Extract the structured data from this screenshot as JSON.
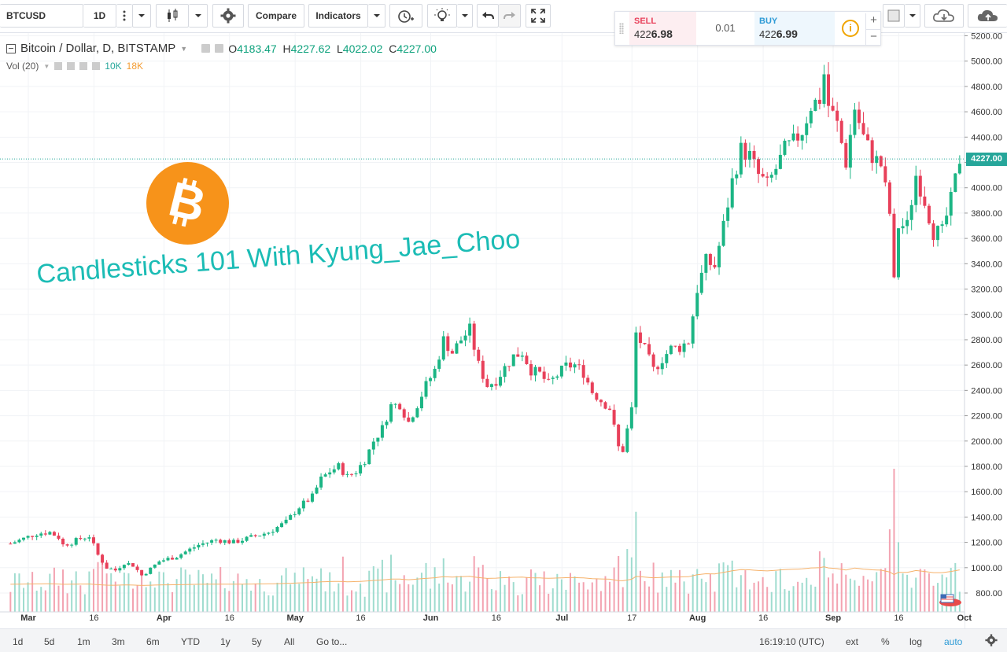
{
  "toolbar": {
    "symbol": "BTCUSD",
    "interval": "1D",
    "compare_label": "Compare",
    "indicators_label": "Indicators"
  },
  "trade_panel": {
    "sell_label": "SELL",
    "sell_price_prefix": "422",
    "sell_price_suffix": "6.98",
    "spread": "0.01",
    "buy_label": "BUY",
    "buy_price_prefix": "422",
    "buy_price_suffix": "6.99",
    "plus": "+",
    "minus": "−"
  },
  "legend": {
    "title": "Bitcoin / Dollar, D, BITSTAMP",
    "o_label": "O",
    "o_value": "4183.47",
    "h_label": "H",
    "h_value": "4227.62",
    "l_label": "L",
    "l_value": "4022.02",
    "c_label": "C",
    "c_value": "4227.00",
    "vol_label": "Vol (20)",
    "vol_value_1": "10K",
    "vol_value_2": "18K"
  },
  "overlay_text": "Candlesticks 101 With Kyung_Jae_Choo",
  "bottom_bar": {
    "ranges": [
      "1d",
      "5d",
      "1m",
      "3m",
      "6m",
      "YTD",
      "1y",
      "5y",
      "All"
    ],
    "goto_label": "Go to...",
    "time": "16:19:10 (UTC)",
    "ext": "ext",
    "percent": "%",
    "log": "log",
    "auto": "auto"
  },
  "colors": {
    "up": "#26a69a",
    "down": "#ef5350",
    "up_candle": "#1bb584",
    "down_candle": "#e8405a",
    "volume_ma": "#f6b26b",
    "bitcoin_orange": "#f7931a",
    "headline": "#1bbcb5",
    "current_price_tag": "#26a69a"
  },
  "chart_data": {
    "type": "candlestick",
    "title": "Bitcoin / Dollar, D, BITSTAMP",
    "current_price": "4227.00",
    "ylim": [
      700,
      5220
    ],
    "y_ticks": [
      "800.00",
      "1000.00",
      "1200.00",
      "1400.00",
      "1600.00",
      "1800.00",
      "2000.00",
      "2200.00",
      "2400.00",
      "2600.00",
      "2800.00",
      "3000.00",
      "3200.00",
      "3400.00",
      "3600.00",
      "3800.00",
      "4000.00",
      "4200.00",
      "4400.00",
      "4600.00",
      "4800.00",
      "5000.00",
      "5200.00"
    ],
    "x_ticks": [
      "Mar",
      "16",
      "Apr",
      "16",
      "May",
      "16",
      "Jun",
      "16",
      "Jul",
      "17",
      "Aug",
      "16",
      "Sep",
      "16",
      "Oct"
    ],
    "x_tick_days": [
      0,
      15,
      31,
      46,
      61,
      76,
      92,
      107,
      122,
      138,
      153,
      168,
      184,
      199,
      214
    ],
    "day_start": "2017-03-01",
    "close_series": [
      [
        -3,
        1190
      ],
      [
        0,
        1230
      ],
      [
        3,
        1270
      ],
      [
        6,
        1280
      ],
      [
        8,
        1240
      ],
      [
        9,
        1180
      ],
      [
        11,
        1200
      ],
      [
        13,
        1230
      ],
      [
        15,
        1250
      ],
      [
        17,
        1100
      ],
      [
        19,
        1000
      ],
      [
        21,
        980
      ],
      [
        23,
        1040
      ],
      [
        25,
        1020
      ],
      [
        27,
        940
      ],
      [
        29,
        990
      ],
      [
        31,
        1050
      ],
      [
        35,
        1090
      ],
      [
        40,
        1180
      ],
      [
        44,
        1220
      ],
      [
        48,
        1200
      ],
      [
        52,
        1240
      ],
      [
        56,
        1280
      ],
      [
        60,
        1360
      ],
      [
        63,
        1480
      ],
      [
        66,
        1560
      ],
      [
        68,
        1700
      ],
      [
        70,
        1760
      ],
      [
        72,
        1800
      ],
      [
        74,
        1720
      ],
      [
        76,
        1760
      ],
      [
        78,
        1850
      ],
      [
        80,
        2000
      ],
      [
        82,
        2100
      ],
      [
        84,
        2280
      ],
      [
        86,
        2290
      ],
      [
        88,
        2150
      ],
      [
        90,
        2290
      ],
      [
        92,
        2440
      ],
      [
        94,
        2560
      ],
      [
        96,
        2800
      ],
      [
        98,
        2700
      ],
      [
        100,
        2800
      ],
      [
        102,
        2880
      ],
      [
        104,
        2600
      ],
      [
        106,
        2440
      ],
      [
        108,
        2480
      ],
      [
        110,
        2580
      ],
      [
        112,
        2670
      ],
      [
        114,
        2700
      ],
      [
        116,
        2560
      ],
      [
        118,
        2530
      ],
      [
        120,
        2450
      ],
      [
        122,
        2520
      ],
      [
        124,
        2590
      ],
      [
        126,
        2600
      ],
      [
        128,
        2540
      ],
      [
        130,
        2390
      ],
      [
        132,
        2320
      ],
      [
        134,
        2260
      ],
      [
        136,
        1950
      ],
      [
        137,
        1930
      ],
      [
        139,
        2250
      ],
      [
        140,
        2850
      ],
      [
        142,
        2720
      ],
      [
        144,
        2560
      ],
      [
        146,
        2650
      ],
      [
        148,
        2730
      ],
      [
        150,
        2740
      ],
      [
        152,
        2790
      ],
      [
        154,
        3200
      ],
      [
        156,
        3420
      ],
      [
        158,
        3380
      ],
      [
        160,
        3700
      ],
      [
        162,
        4050
      ],
      [
        164,
        4300
      ],
      [
        166,
        4250
      ],
      [
        168,
        4100
      ],
      [
        170,
        4020
      ],
      [
        172,
        4150
      ],
      [
        174,
        4300
      ],
      [
        176,
        4360
      ],
      [
        178,
        4450
      ],
      [
        180,
        4650
      ],
      [
        182,
        4700
      ],
      [
        183,
        4900
      ],
      [
        184,
        4650
      ],
      [
        186,
        4500
      ],
      [
        188,
        4200
      ],
      [
        190,
        4630
      ],
      [
        192,
        4400
      ],
      [
        194,
        4250
      ],
      [
        196,
        4180
      ],
      [
        198,
        3800
      ],
      [
        199,
        3250
      ],
      [
        200,
        3700
      ],
      [
        202,
        3700
      ],
      [
        204,
        4100
      ],
      [
        206,
        3900
      ],
      [
        208,
        3650
      ],
      [
        210,
        3650
      ],
      [
        212,
        3900
      ],
      [
        214,
        4227
      ]
    ],
    "volume_scale_label": "volume (relative)",
    "volume_series_description": "daily volume bars (relative)"
  }
}
